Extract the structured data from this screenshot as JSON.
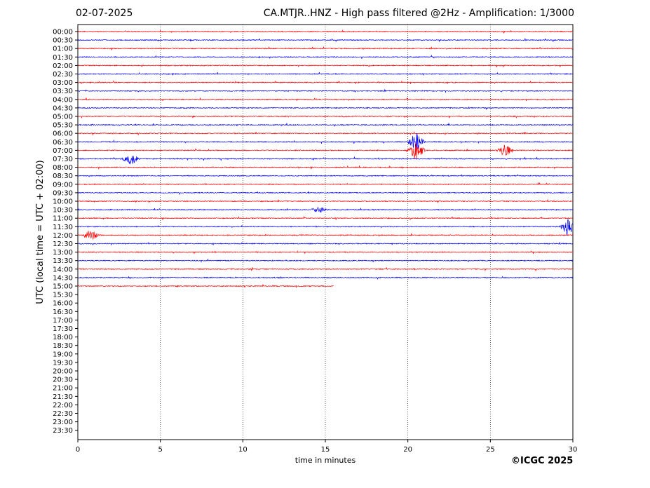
{
  "header": {
    "date": "02-07-2025",
    "title": "CA.MTJR..HNZ - High pass filtered @2Hz - Amplification: 1/3000"
  },
  "footer": {
    "copyright": "©ICGC 2025"
  },
  "colors": {
    "trace_odd": "#ff0000",
    "trace_even": "#0000ff",
    "axis": "#000000",
    "gridline": "#000000"
  },
  "chart_data": {
    "type": "line",
    "title": "CA.MTJR..HNZ - High pass filtered @2Hz - Amplification: 1/3000",
    "xlabel": "time in minutes",
    "ylabel": "UTC (local time = UTC + 02:00)",
    "xlim": [
      0,
      30
    ],
    "x_ticks": [
      0,
      5,
      10,
      15,
      20,
      25,
      30
    ],
    "grid": "vertical dotted lines at 5, 10, 15, 20, 25 minutes",
    "row_labels": [
      "00:00",
      "00:30",
      "01:00",
      "01:30",
      "02:00",
      "02:30",
      "03:00",
      "03:30",
      "04:00",
      "04:30",
      "05:00",
      "05:30",
      "06:00",
      "06:30",
      "07:00",
      "07:30",
      "08:00",
      "08:30",
      "09:00",
      "09:30",
      "10:00",
      "10:30",
      "11:00",
      "11:30",
      "12:00",
      "12:30",
      "13:00",
      "13:30",
      "14:00",
      "14:30",
      "15:00",
      "15:30",
      "16:00",
      "16:30",
      "17:00",
      "17:30",
      "18:00",
      "18:30",
      "19:00",
      "19:30",
      "20:00",
      "20:30",
      "21:00",
      "21:30",
      "22:00",
      "22:30",
      "23:00",
      "23:30"
    ],
    "series_colors": "alternating red / blue per row",
    "recorded_rows": 31,
    "last_row_end_minute": 15.5,
    "events": [
      {
        "row": "06:30",
        "minute": 20.5,
        "amplitude": "large"
      },
      {
        "row": "07:00",
        "minute": 20.5,
        "amplitude": "large"
      },
      {
        "row": "07:00",
        "minute": 25.9,
        "amplitude": "medium"
      },
      {
        "row": "07:30",
        "minute": 3.2,
        "amplitude": "medium"
      },
      {
        "row": "11:30",
        "minute": 29.7,
        "amplitude": "large"
      },
      {
        "row": "12:00",
        "minute": 0.8,
        "amplitude": "medium"
      },
      {
        "row": "10:30",
        "minute": 14.6,
        "amplitude": "small"
      }
    ]
  }
}
